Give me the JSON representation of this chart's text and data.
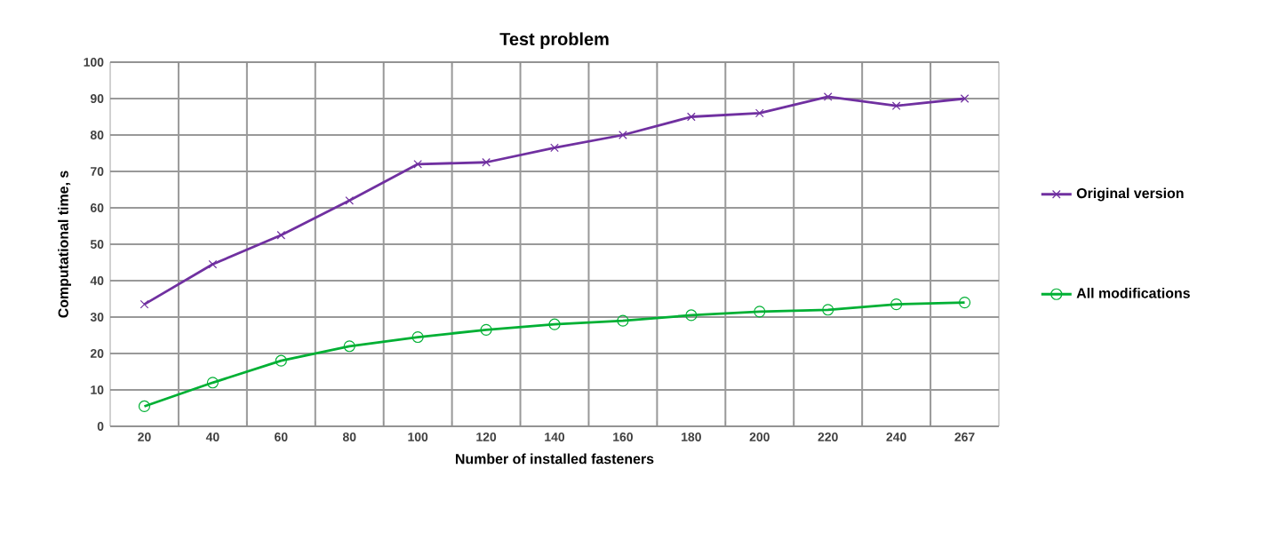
{
  "chart_data": {
    "type": "line",
    "title": "Test problem",
    "xlabel": "Number of installed  fasteners",
    "ylabel": "Computational time, s",
    "categories": [
      "20",
      "40",
      "60",
      "80",
      "100",
      "120",
      "140",
      "160",
      "180",
      "200",
      "220",
      "240",
      "267"
    ],
    "series": [
      {
        "name": "Original version",
        "color": "#7030a0",
        "marker": "cross",
        "values": [
          33.5,
          44.5,
          52.5,
          62,
          72,
          72.5,
          76.5,
          80,
          85,
          86,
          90.5,
          88,
          90
        ]
      },
      {
        "name": "All modifications",
        "color": "#00b034",
        "marker": "circle",
        "values": [
          5.5,
          12,
          18,
          22,
          24.5,
          26.5,
          28,
          29,
          30.5,
          31.5,
          32,
          33.5,
          34
        ]
      }
    ],
    "ylim": [
      0,
      100
    ],
    "yticks": [
      0,
      10,
      20,
      30,
      40,
      50,
      60,
      70,
      80,
      90,
      100
    ],
    "grid": true,
    "legend": "right"
  }
}
